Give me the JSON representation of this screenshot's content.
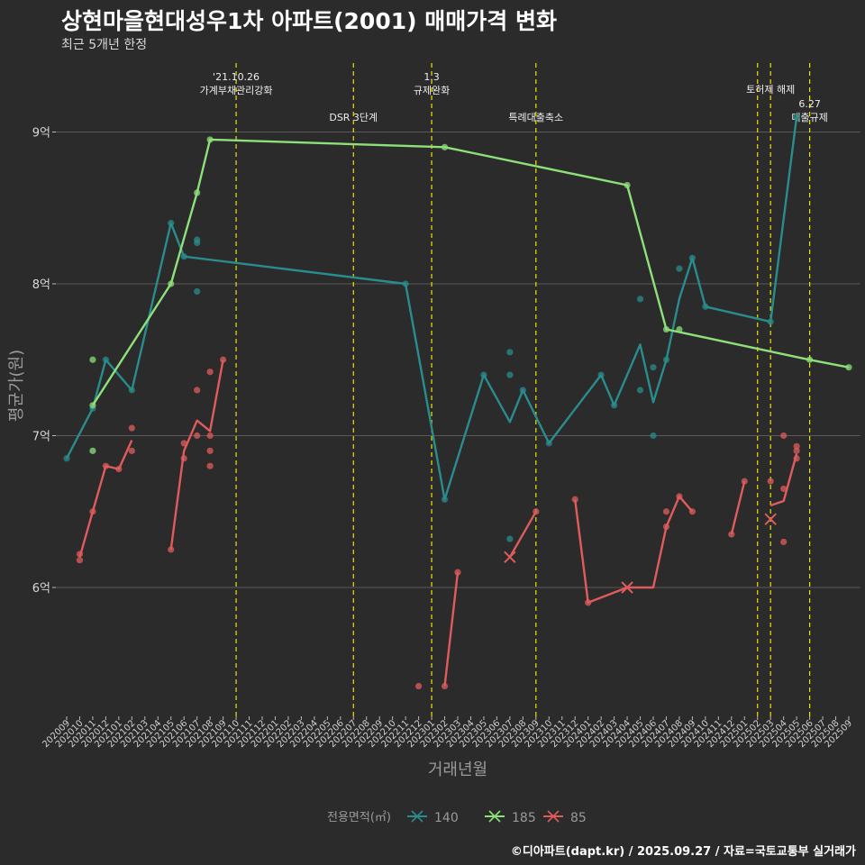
{
  "chart_data": {
    "type": "line",
    "title": "상현마을현대성우1차 아파트(2001) 매매가격 변화",
    "subtitle": "최근 5개년 한정",
    "xlabel": "거래년월",
    "ylabel": "평균가(원)",
    "source": "©디아파트(dapt.kr) / 2025.09.27 / 자료=국토교통부 실거래가",
    "legend_title": "전용면적(㎡)",
    "ylim": [
      5.2,
      9.45
    ],
    "yticks": [
      6,
      7,
      8,
      9
    ],
    "ytick_labels": [
      "6억",
      "7억",
      "8억",
      "9억"
    ],
    "x_categories": [
      "202009",
      "202010",
      "202011",
      "202012",
      "202101",
      "202102",
      "202103",
      "202104",
      "202105",
      "202106",
      "202107",
      "202108",
      "202109",
      "202110",
      "202111",
      "202112",
      "202201",
      "202202",
      "202203",
      "202204",
      "202205",
      "202206",
      "202207",
      "202208",
      "202209",
      "202210",
      "202211",
      "202212",
      "202301",
      "202302",
      "202303",
      "202304",
      "202305",
      "202306",
      "202307",
      "202308",
      "202309",
      "202310",
      "202311",
      "202312",
      "202401",
      "202402",
      "202403",
      "202404",
      "202405",
      "202406",
      "202407",
      "202408",
      "202409",
      "202410",
      "202411",
      "202412",
      "202501",
      "202502",
      "202503",
      "202504",
      "202505",
      "202506",
      "202507",
      "202508",
      "202509"
    ],
    "events": [
      {
        "x": 13,
        "label": "'21.10.26\n가계부채관리강화",
        "tier": 0
      },
      {
        "x": 22,
        "label": "DSR 3단계",
        "tier": 2
      },
      {
        "x": 28,
        "label": "1.3\n규제완화",
        "tier": 0
      },
      {
        "x": 36,
        "label": "특례대출축소",
        "tier": 2
      },
      {
        "x": 53,
        "label": "",
        "tier": 0
      },
      {
        "x": 54,
        "label": "토허제 해제",
        "tier": 1
      },
      {
        "x": 57,
        "label": "6.27\n대출규제",
        "tier": 3
      }
    ],
    "series": [
      {
        "name": "140",
        "color": "#2a8c8c",
        "line": [
          [
            0,
            6.85
          ],
          [
            2,
            7.18
          ],
          [
            3,
            7.5
          ],
          [
            5,
            7.3
          ],
          [
            8,
            8.4
          ],
          [
            9,
            8.18
          ],
          [
            26,
            8.0
          ],
          [
            29,
            6.58
          ],
          [
            32,
            7.4
          ],
          [
            34,
            7.09
          ],
          [
            35,
            7.3
          ],
          [
            37,
            6.95
          ],
          [
            41,
            7.4
          ],
          [
            42,
            7.2
          ],
          [
            44,
            7.6
          ],
          [
            45,
            7.22
          ],
          [
            46,
            7.5
          ],
          [
            47,
            7.9
          ],
          [
            48,
            8.17
          ],
          [
            49,
            7.85
          ],
          [
            54,
            7.75
          ],
          [
            56,
            9.1
          ]
        ],
        "points": [
          [
            0,
            6.85
          ],
          [
            2,
            7.18
          ],
          [
            3,
            7.5
          ],
          [
            5,
            7.3
          ],
          [
            8,
            8.4
          ],
          [
            9,
            8.18
          ],
          [
            10,
            8.27
          ],
          [
            10,
            8.29
          ],
          [
            10,
            7.95
          ],
          [
            26,
            8.0
          ],
          [
            29,
            6.58
          ],
          [
            32,
            7.4
          ],
          [
            34,
            7.55
          ],
          [
            34,
            7.4
          ],
          [
            34,
            6.32
          ],
          [
            35,
            7.3
          ],
          [
            37,
            6.95
          ],
          [
            41,
            7.4
          ],
          [
            42,
            7.2
          ],
          [
            44,
            7.9
          ],
          [
            44,
            7.3
          ],
          [
            45,
            7.45
          ],
          [
            45,
            7.0
          ],
          [
            46,
            7.5
          ],
          [
            47,
            8.1
          ],
          [
            48,
            8.17
          ],
          [
            49,
            7.85
          ],
          [
            54,
            7.75
          ],
          [
            56,
            9.1
          ]
        ],
        "crosses": []
      },
      {
        "name": "185",
        "color": "#8ee07a",
        "line": [
          [
            2,
            7.2
          ],
          [
            8,
            8.0
          ],
          [
            10,
            8.6
          ],
          [
            11,
            8.95
          ],
          [
            29,
            8.9
          ],
          [
            43,
            8.65
          ],
          [
            46,
            7.7
          ],
          [
            57,
            7.5
          ],
          [
            60,
            7.45
          ]
        ],
        "points": [
          [
            2,
            7.5
          ],
          [
            2,
            6.9
          ],
          [
            2,
            7.2
          ],
          [
            8,
            8.0
          ],
          [
            10,
            8.6
          ],
          [
            11,
            8.95
          ],
          [
            29,
            8.9
          ],
          [
            43,
            8.65
          ],
          [
            46,
            7.7
          ],
          [
            47,
            7.7
          ],
          [
            57,
            7.5
          ],
          [
            60,
            7.45
          ]
        ],
        "crosses": []
      },
      {
        "name": "85",
        "color": "#e05c5c",
        "segments": [
          [
            [
              1,
              6.2
            ],
            [
              2,
              6.5
            ],
            [
              3,
              6.8
            ],
            [
              4,
              6.78
            ],
            [
              5,
              6.97
            ]
          ],
          [
            [
              8,
              6.25
            ],
            [
              9,
              6.9
            ],
            [
              10,
              7.1
            ],
            [
              11,
              7.03
            ],
            [
              12,
              7.5
            ]
          ],
          [
            [
              29,
              5.35
            ],
            [
              30,
              6.1
            ]
          ],
          [
            [
              34,
              6.2
            ],
            [
              36,
              6.5
            ]
          ],
          [
            [
              39,
              6.58
            ],
            [
              40,
              5.9
            ],
            [
              43,
              6.0
            ],
            [
              45,
              6.0
            ],
            [
              46,
              6.4
            ],
            [
              47,
              6.6
            ],
            [
              48,
              6.5
            ]
          ],
          [
            [
              51,
              6.35
            ],
            [
              52,
              6.7
            ]
          ],
          [
            [
              54,
              6.54
            ],
            [
              55,
              6.57
            ],
            [
              56,
              6.88
            ]
          ]
        ],
        "points": [
          [
            1,
            6.22
          ],
          [
            1,
            6.18
          ],
          [
            2,
            6.5
          ],
          [
            3,
            6.8
          ],
          [
            4,
            6.78
          ],
          [
            5,
            7.05
          ],
          [
            5,
            6.9
          ],
          [
            8,
            6.25
          ],
          [
            9,
            6.95
          ],
          [
            9,
            6.85
          ],
          [
            10,
            7.3
          ],
          [
            10,
            7.0
          ],
          [
            11,
            7.42
          ],
          [
            11,
            7.0
          ],
          [
            11,
            6.9
          ],
          [
            11,
            6.8
          ],
          [
            12,
            7.5
          ],
          [
            27,
            5.35
          ],
          [
            29,
            5.35
          ],
          [
            30,
            6.1
          ],
          [
            36,
            6.5
          ],
          [
            39,
            6.58
          ],
          [
            40,
            5.9
          ],
          [
            46,
            6.5
          ],
          [
            46,
            6.4
          ],
          [
            47,
            6.6
          ],
          [
            48,
            6.5
          ],
          [
            51,
            6.35
          ],
          [
            52,
            6.7
          ],
          [
            54,
            6.7
          ],
          [
            55,
            7.0
          ],
          [
            55,
            6.65
          ],
          [
            55,
            6.3
          ],
          [
            56,
            6.93
          ],
          [
            56,
            6.9
          ],
          [
            56,
            6.85
          ]
        ],
        "crosses": [
          [
            34,
            6.2
          ],
          [
            43,
            6.0
          ],
          [
            54,
            6.45
          ]
        ]
      }
    ]
  }
}
